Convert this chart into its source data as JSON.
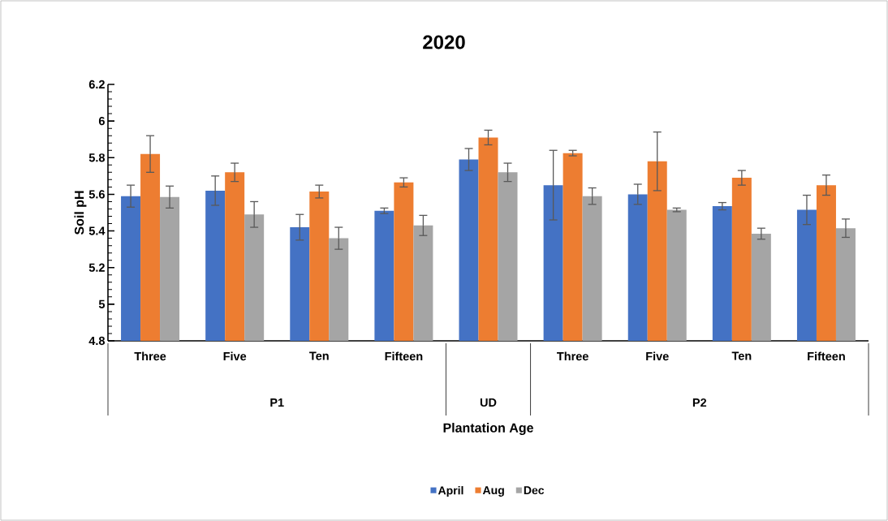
{
  "chart_data": {
    "type": "bar",
    "title": "2020",
    "xlabel": "Plantation Age",
    "ylabel": "Soil pH",
    "categories": [
      "Three",
      "Five",
      "Ten",
      "Fifteen",
      null,
      "Three",
      "Five",
      "Ten",
      "Fifteen"
    ],
    "annotations": [
      "P1",
      "UD",
      "P2"
    ],
    "series": [
      {
        "name": "April",
        "color": "#4472c4",
        "values": [
          5.59,
          5.62,
          5.42,
          5.51,
          5.79,
          5.65,
          5.6,
          5.535,
          5.515
        ],
        "errors": [
          0.06,
          0.08,
          0.07,
          0.015,
          0.06,
          0.19,
          0.055,
          0.02,
          0.08
        ]
      },
      {
        "name": "Aug",
        "color": "#ed7d31",
        "values": [
          5.82,
          5.72,
          5.615,
          5.665,
          5.91,
          5.825,
          5.78,
          5.69,
          5.65
        ],
        "errors": [
          0.1,
          0.05,
          0.035,
          0.025,
          0.04,
          0.015,
          0.16,
          0.04,
          0.055
        ]
      },
      {
        "name": "Dec",
        "color": "#a5a5a5",
        "values": [
          5.585,
          5.49,
          5.36,
          5.43,
          5.72,
          5.59,
          5.515,
          5.385,
          5.415
        ],
        "errors": [
          0.06,
          0.07,
          0.06,
          0.055,
          0.05,
          0.045,
          0.01,
          0.03,
          0.05
        ]
      }
    ],
    "ylim": [
      4.8,
      6.2
    ],
    "yticks": [
      4.8,
      5,
      5.2,
      5.4,
      5.6,
      5.8,
      6,
      6.2
    ],
    "legend": "bottom"
  }
}
